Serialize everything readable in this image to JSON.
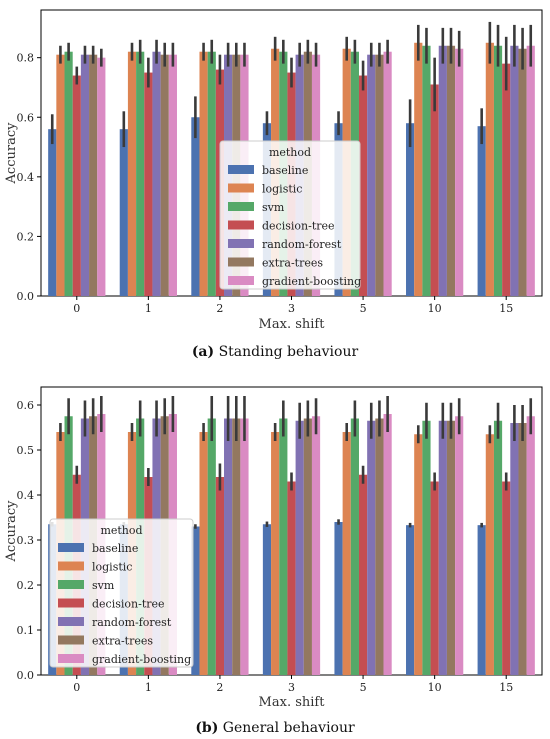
{
  "colors": {
    "baseline": "#4c72b0",
    "logistic": "#dd8452",
    "svm": "#55a868",
    "decision-tree": "#c44e52",
    "random-forest": "#8172b3",
    "extra-trees": "#937860",
    "gradient-boosting": "#da8bc3"
  },
  "chart_data": [
    {
      "type": "bar",
      "caption_letter": "(a)",
      "caption_text": " Standing behaviour",
      "xlabel": "Max. shift",
      "ylabel": "Accuracy",
      "ylim": [
        0,
        0.96
      ],
      "yticks": [
        "0.0",
        "0.2",
        "0.4",
        "0.6",
        "0.8"
      ],
      "ytick_values": [
        0,
        0.2,
        0.4,
        0.6,
        0.8
      ],
      "categories": [
        "0",
        "1",
        "2",
        "3",
        "5",
        "10",
        "15"
      ],
      "legend_title": "method",
      "legend_position": "center",
      "series": [
        {
          "name": "baseline",
          "values": [
            0.56,
            0.56,
            0.6,
            0.58,
            0.58,
            0.58,
            0.57
          ],
          "err": [
            0.05,
            0.06,
            0.07,
            0.04,
            0.04,
            0.08,
            0.06
          ]
        },
        {
          "name": "logistic",
          "values": [
            0.81,
            0.82,
            0.82,
            0.83,
            0.83,
            0.85,
            0.85
          ],
          "err": [
            0.03,
            0.03,
            0.03,
            0.04,
            0.04,
            0.06,
            0.07
          ]
        },
        {
          "name": "svm",
          "values": [
            0.82,
            0.82,
            0.82,
            0.82,
            0.82,
            0.84,
            0.84
          ],
          "err": [
            0.03,
            0.04,
            0.04,
            0.04,
            0.04,
            0.06,
            0.07
          ]
        },
        {
          "name": "decision-tree",
          "values": [
            0.74,
            0.75,
            0.76,
            0.75,
            0.74,
            0.71,
            0.78
          ],
          "err": [
            0.03,
            0.05,
            0.05,
            0.05,
            0.05,
            0.09,
            0.09
          ]
        },
        {
          "name": "random-forest",
          "values": [
            0.81,
            0.82,
            0.81,
            0.81,
            0.81,
            0.84,
            0.84
          ],
          "err": [
            0.03,
            0.04,
            0.04,
            0.04,
            0.04,
            0.06,
            0.07
          ]
        },
        {
          "name": "extra-trees",
          "values": [
            0.81,
            0.81,
            0.81,
            0.82,
            0.81,
            0.84,
            0.83
          ],
          "err": [
            0.03,
            0.04,
            0.04,
            0.04,
            0.04,
            0.06,
            0.07
          ]
        },
        {
          "name": "gradient-boosting",
          "values": [
            0.8,
            0.81,
            0.81,
            0.81,
            0.82,
            0.83,
            0.84
          ],
          "err": [
            0.03,
            0.04,
            0.04,
            0.04,
            0.04,
            0.06,
            0.07
          ]
        }
      ]
    },
    {
      "type": "bar",
      "caption_letter": "(b)",
      "caption_text": " General behaviour",
      "xlabel": "Max. shift",
      "ylabel": "Accuracy",
      "ylim": [
        0,
        0.64
      ],
      "yticks": [
        "0.0",
        "0.1",
        "0.2",
        "0.3",
        "0.4",
        "0.5",
        "0.6"
      ],
      "ytick_values": [
        0,
        0.1,
        0.2,
        0.3,
        0.4,
        0.5,
        0.6
      ],
      "categories": [
        "0",
        "1",
        "2",
        "3",
        "5",
        "10",
        "15"
      ],
      "legend_title": "method",
      "legend_position": "center-left",
      "series": [
        {
          "name": "baseline",
          "values": [
            0.335,
            0.335,
            0.33,
            0.335,
            0.34,
            0.333,
            0.333
          ],
          "err": [
            0.005,
            0.005,
            0.005,
            0.006,
            0.006,
            0.005,
            0.005
          ]
        },
        {
          "name": "logistic",
          "values": [
            0.54,
            0.54,
            0.54,
            0.54,
            0.54,
            0.535,
            0.535
          ],
          "err": [
            0.02,
            0.02,
            0.02,
            0.02,
            0.02,
            0.02,
            0.02
          ]
        },
        {
          "name": "svm",
          "values": [
            0.575,
            0.57,
            0.57,
            0.57,
            0.57,
            0.565,
            0.565
          ],
          "err": [
            0.04,
            0.04,
            0.05,
            0.04,
            0.04,
            0.04,
            0.04
          ]
        },
        {
          "name": "decision-tree",
          "values": [
            0.445,
            0.44,
            0.44,
            0.43,
            0.445,
            0.43,
            0.43
          ],
          "err": [
            0.02,
            0.02,
            0.03,
            0.02,
            0.02,
            0.02,
            0.02
          ]
        },
        {
          "name": "random-forest",
          "values": [
            0.57,
            0.57,
            0.57,
            0.565,
            0.565,
            0.565,
            0.56
          ],
          "err": [
            0.04,
            0.04,
            0.05,
            0.04,
            0.04,
            0.04,
            0.04
          ]
        },
        {
          "name": "extra-trees",
          "values": [
            0.575,
            0.575,
            0.57,
            0.57,
            0.57,
            0.565,
            0.56
          ],
          "err": [
            0.04,
            0.04,
            0.05,
            0.04,
            0.04,
            0.04,
            0.04
          ]
        },
        {
          "name": "gradient-boosting",
          "values": [
            0.58,
            0.58,
            0.57,
            0.575,
            0.58,
            0.575,
            0.575
          ],
          "err": [
            0.04,
            0.04,
            0.05,
            0.04,
            0.04,
            0.04,
            0.04
          ]
        }
      ]
    }
  ]
}
